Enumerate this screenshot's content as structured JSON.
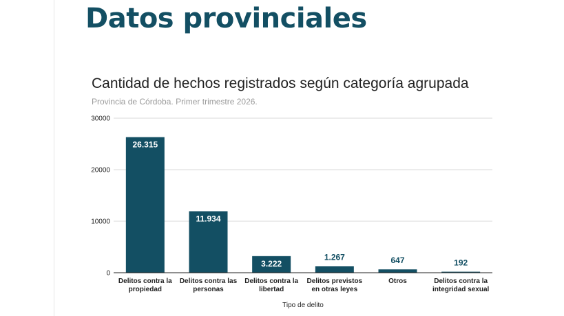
{
  "page": {
    "title": "Datos provinciales"
  },
  "chart_data": {
    "type": "bar",
    "title": "Cantidad de hechos registrados según categoría agrupada",
    "subtitle": "Provincia de Córdoba. Primer trimestre 2026.",
    "xlabel": "Tipo de delito",
    "ylabel": "",
    "ylim": [
      0,
      30000
    ],
    "yticks": [
      0,
      10000,
      20000,
      30000
    ],
    "ytick_labels": [
      "0",
      "10000",
      "20000",
      "30000"
    ],
    "grid": true,
    "legend": "none",
    "color": "#134f63",
    "categories": [
      [
        "Delitos contra la",
        "propiedad"
      ],
      [
        "Delitos contra las",
        "personas"
      ],
      [
        "Delitos contra la",
        "libertad"
      ],
      [
        "Delitos previstos",
        "en otras leyes"
      ],
      [
        "Otros"
      ],
      [
        "Delitos contra la",
        "integridad sexual"
      ]
    ],
    "values": [
      26315,
      11934,
      3222,
      1267,
      647,
      192
    ],
    "value_labels": [
      "26.315",
      "11.934",
      "3.222",
      "1.267",
      "647",
      "192"
    ]
  }
}
